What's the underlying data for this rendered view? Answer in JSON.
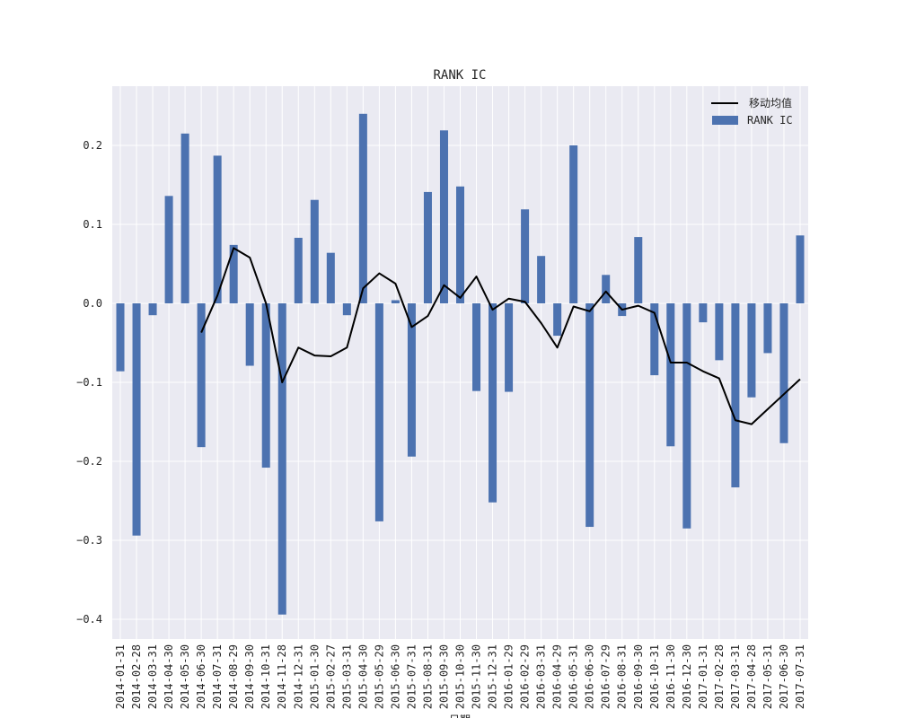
{
  "chart_data": {
    "type": "bar",
    "title": "RANK IC",
    "xlabel": "日期",
    "ylabel": "",
    "ylim": [
      -0.425,
      0.275
    ],
    "yticks": [
      -0.4,
      -0.3,
      -0.2,
      -0.1,
      0.0,
      0.1,
      0.2
    ],
    "ytick_labels": [
      "−0.4",
      "−0.3",
      "−0.2",
      "−0.1",
      "0.0",
      "0.1",
      "0.2"
    ],
    "grid": true,
    "legend_position": "top-right",
    "categories": [
      "2014-01-31",
      "2014-02-28",
      "2014-03-31",
      "2014-04-30",
      "2014-05-30",
      "2014-06-30",
      "2014-07-31",
      "2014-08-29",
      "2014-09-30",
      "2014-10-31",
      "2014-11-28",
      "2014-12-31",
      "2015-01-30",
      "2015-02-27",
      "2015-03-31",
      "2015-04-30",
      "2015-05-29",
      "2015-06-30",
      "2015-07-31",
      "2015-08-31",
      "2015-09-30",
      "2015-10-30",
      "2015-11-30",
      "2015-12-31",
      "2016-01-29",
      "2016-02-29",
      "2016-03-31",
      "2016-04-29",
      "2016-05-31",
      "2016-06-30",
      "2016-07-29",
      "2016-08-31",
      "2016-09-30",
      "2016-10-31",
      "2016-11-30",
      "2016-12-30",
      "2017-01-31",
      "2017-02-28",
      "2017-03-31",
      "2017-04-28",
      "2017-05-31",
      "2017-06-30",
      "2017-07-31"
    ],
    "series": [
      {
        "name": "RANK IC",
        "type": "bar",
        "color": "#4c72b0",
        "values": [
          -0.086,
          -0.294,
          -0.015,
          0.136,
          0.215,
          -0.182,
          0.187,
          0.074,
          -0.079,
          -0.208,
          -0.394,
          0.083,
          0.131,
          0.064,
          -0.015,
          0.24,
          -0.276,
          0.004,
          -0.194,
          0.141,
          0.219,
          0.148,
          -0.111,
          -0.252,
          -0.112,
          0.119,
          0.06,
          -0.041,
          0.2,
          -0.283,
          0.036,
          -0.016,
          0.084,
          -0.091,
          -0.181,
          -0.285,
          -0.024,
          -0.072,
          -0.233,
          -0.119,
          -0.063,
          -0.177,
          0.086
        ]
      },
      {
        "name": "移动均值",
        "type": "line",
        "color": "#000000",
        "values": [
          null,
          null,
          null,
          null,
          null,
          -0.037,
          0.01,
          0.07,
          0.058,
          0.0,
          -0.1,
          -0.056,
          -0.066,
          -0.067,
          -0.056,
          0.019,
          0.038,
          0.025,
          -0.03,
          -0.016,
          0.023,
          0.007,
          0.034,
          -0.008,
          0.006,
          0.002,
          -0.025,
          -0.056,
          -0.004,
          -0.01,
          0.015,
          -0.008,
          -0.003,
          -0.012,
          -0.075,
          -0.075,
          -0.086,
          -0.095,
          -0.148,
          -0.153,
          -0.134,
          -0.115,
          -0.096
        ]
      }
    ]
  }
}
